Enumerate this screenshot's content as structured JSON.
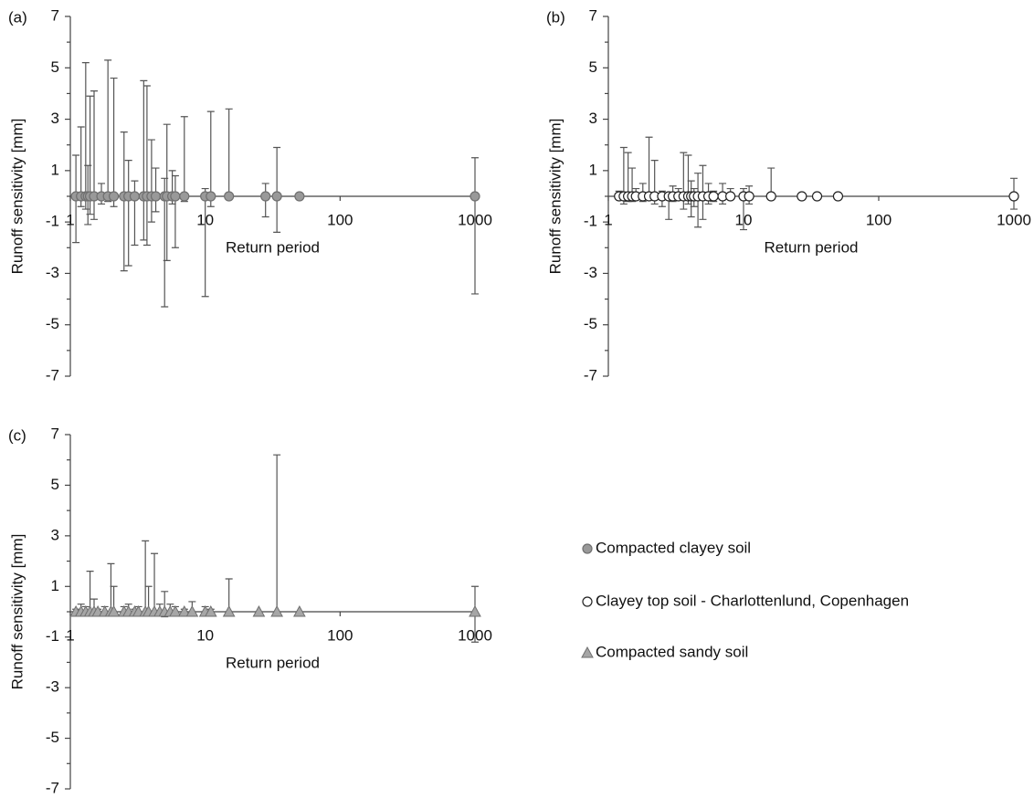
{
  "chart_data": [
    {
      "type": "scatter",
      "label": "(a)",
      "xlabel": "Return period",
      "ylabel": "Runoff sensitivity [mm]",
      "log_x": true,
      "xlim": [
        1,
        1000
      ],
      "xticks": [
        1,
        10,
        100,
        1000
      ],
      "ylim": [
        -7,
        7
      ],
      "yticks": [
        -7,
        -5,
        -3,
        -1,
        1,
        3,
        5,
        7
      ],
      "series": [
        {
          "name": "Compacted clayey soil",
          "color": "#999999",
          "marker": "circle",
          "x": [
            1.1,
            1.2,
            1.3,
            1.35,
            1.4,
            1.5,
            1.7,
            1.9,
            2.1,
            2.5,
            2.7,
            3.0,
            3.5,
            3.7,
            4.0,
            4.3,
            5.0,
            5.2,
            5.7,
            6.0,
            7.0,
            10,
            11,
            15,
            28,
            34,
            50,
            1000
          ],
          "values": [
            0,
            0,
            0,
            0,
            0,
            0,
            0,
            0,
            0,
            0,
            0,
            0,
            0,
            0,
            0,
            0,
            0,
            0,
            0,
            0,
            0,
            0,
            0,
            0,
            0,
            0,
            0,
            0
          ],
          "err_high": [
            1.6,
            2.7,
            5.2,
            1.2,
            3.9,
            4.1,
            0.5,
            5.3,
            4.6,
            2.5,
            1.4,
            0.6,
            4.5,
            4.3,
            2.2,
            1.1,
            0.7,
            2.8,
            1.0,
            0.8,
            3.1,
            0.3,
            3.3,
            3.4,
            0.5,
            1.9,
            0,
            1.5
          ],
          "err_low": [
            1.8,
            0.4,
            0.5,
            1.1,
            0.7,
            0.9,
            0.3,
            0.2,
            0.4,
            2.9,
            2.7,
            1.9,
            1.7,
            1.9,
            1.0,
            0.6,
            4.3,
            2.5,
            0.3,
            2.0,
            0.2,
            3.9,
            0.4,
            0,
            0.8,
            1.4,
            0,
            3.8
          ]
        }
      ]
    },
    {
      "type": "scatter",
      "label": "(b)",
      "xlabel": "Return period",
      "ylabel": "Runoff sensitivity [mm]",
      "log_x": true,
      "xlim": [
        1,
        1000
      ],
      "xticks": [
        1,
        10,
        100,
        1000
      ],
      "ylim": [
        -7,
        7
      ],
      "yticks": [
        -7,
        -5,
        -3,
        -1,
        1,
        3,
        5,
        7
      ],
      "series": [
        {
          "name": "Clayey top soil - Charlottenlund, Copenhagen",
          "color": "#ffffff",
          "marker": "circle",
          "x": [
            1.2,
            1.3,
            1.4,
            1.5,
            1.6,
            1.8,
            2.0,
            2.2,
            2.5,
            2.8,
            3.0,
            3.3,
            3.6,
            3.9,
            4.1,
            4.3,
            4.6,
            5,
            5.5,
            6,
            7,
            8,
            10,
            11,
            16,
            27,
            35,
            50,
            1000
          ],
          "values": [
            0,
            0,
            0,
            0,
            0,
            0,
            0,
            0,
            0,
            0,
            0,
            0,
            0,
            0,
            0,
            0,
            0,
            0,
            0,
            0,
            0,
            0,
            0,
            0,
            0,
            0,
            0,
            0,
            0
          ],
          "err_high": [
            0.2,
            1.9,
            1.7,
            1.1,
            0.3,
            0.5,
            2.3,
            1.4,
            0.2,
            0.1,
            0.4,
            0.3,
            1.7,
            1.6,
            0.6,
            0.3,
            0.9,
            1.2,
            0.5,
            0.2,
            0.5,
            0.3,
            0.3,
            0.4,
            1.1,
            0,
            0,
            0,
            0.7
          ],
          "err_low": [
            0.1,
            0.3,
            0.2,
            0.2,
            0.1,
            0.2,
            0.1,
            0.3,
            0.4,
            0.9,
            0.2,
            0.1,
            0.5,
            0.3,
            0.8,
            0.4,
            1.2,
            0.9,
            0.3,
            0.2,
            0.3,
            0.1,
            1.3,
            0.3,
            0,
            0,
            0,
            0,
            0.5
          ]
        }
      ]
    },
    {
      "type": "scatter",
      "label": "(c)",
      "xlabel": "Return period",
      "ylabel": "Runoff sensitivity [mm]",
      "log_x": true,
      "xlim": [
        1,
        1000
      ],
      "xticks": [
        1,
        10,
        100,
        1000
      ],
      "ylim": [
        -7,
        7
      ],
      "yticks": [
        -7,
        -5,
        -3,
        -1,
        1,
        3,
        5,
        7
      ],
      "series": [
        {
          "name": "Compacted sandy soil",
          "color": "#a6a6a6",
          "marker": "triangle",
          "x": [
            1.1,
            1.2,
            1.3,
            1.4,
            1.5,
            1.6,
            1.8,
            2.0,
            2.1,
            2.5,
            2.7,
            3.0,
            3.2,
            3.6,
            3.8,
            4.2,
            4.6,
            5.0,
            5.5,
            6,
            7,
            8,
            10,
            11,
            15,
            25,
            34,
            50,
            1000
          ],
          "values": [
            0,
            0,
            0,
            0,
            0,
            0,
            0,
            0,
            0,
            0,
            0,
            0,
            0,
            0,
            0,
            0,
            0,
            0,
            0,
            0,
            0,
            0,
            0,
            0,
            0,
            0,
            0,
            0,
            0
          ],
          "err_high": [
            0.1,
            0.3,
            0.2,
            1.6,
            0.5,
            0.1,
            0.2,
            1.9,
            1.0,
            0.2,
            0.3,
            0.1,
            0.2,
            2.8,
            1.0,
            2.3,
            0.3,
            0.8,
            0.3,
            0.2,
            0.1,
            0.4,
            0.2,
            0.1,
            1.3,
            0,
            6.2,
            0,
            1.0
          ],
          "err_low": [
            0,
            0,
            0.1,
            0.1,
            0,
            0,
            0.1,
            0,
            0.1,
            0,
            0.1,
            0,
            0,
            0.1,
            0,
            0.1,
            0,
            0.2,
            0,
            0,
            0,
            0.1,
            0,
            0.1,
            0,
            0,
            0,
            0,
            1.2
          ]
        }
      ]
    }
  ]
}
